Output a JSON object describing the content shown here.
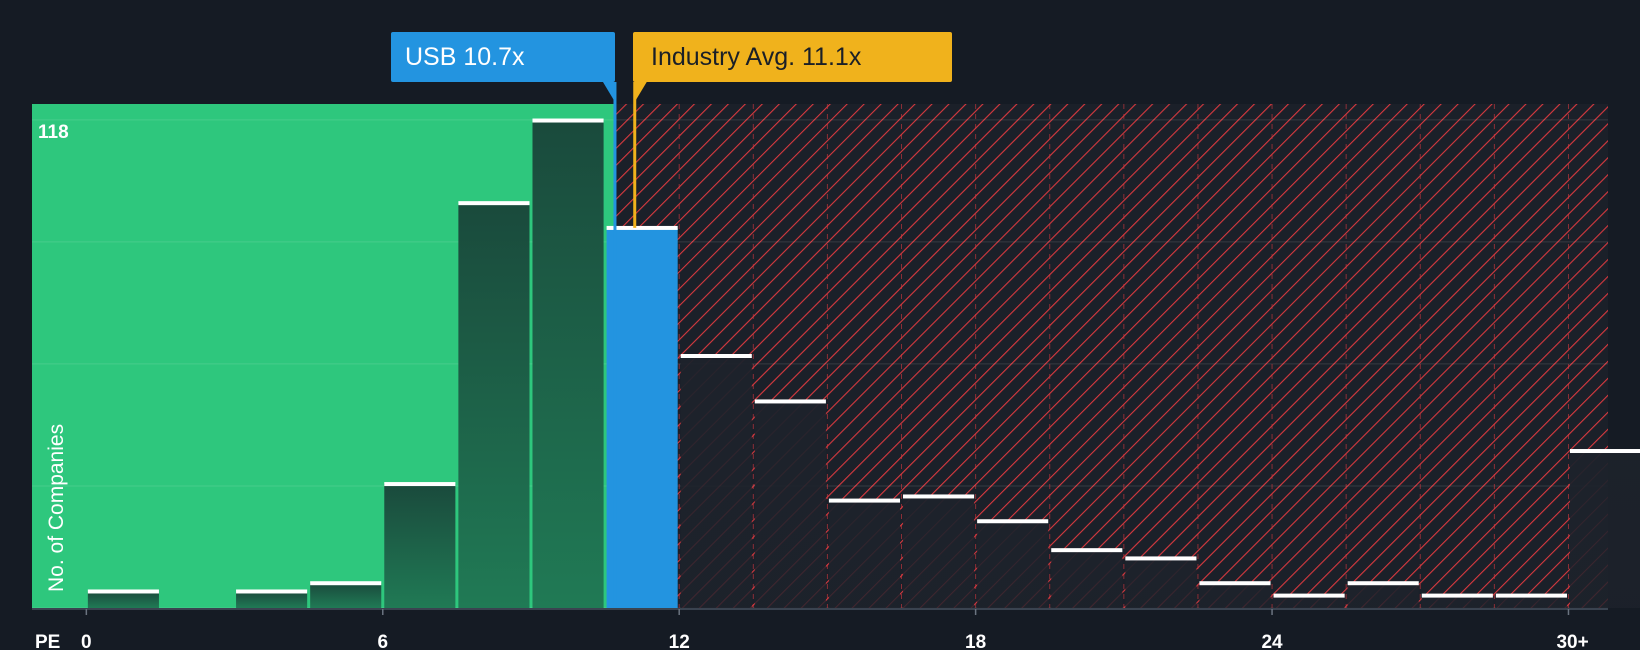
{
  "chart_data": {
    "type": "bar",
    "title": "",
    "xlabel": "PE",
    "ylabel": "No. of Companies",
    "x_ticks": [
      {
        "value": 0,
        "label": "0"
      },
      {
        "value": 6,
        "label": "6"
      },
      {
        "value": 12,
        "label": "12"
      },
      {
        "value": 18,
        "label": "18"
      },
      {
        "value": 24,
        "label": "24"
      },
      {
        "value": 30,
        "label": "30+"
      }
    ],
    "x_range": [
      -1.1,
      30.8
    ],
    "bin_width": 1.5,
    "y_max_label": "118",
    "ylim": [
      0,
      122
    ],
    "grid": true,
    "bins": [
      {
        "start": 0.0,
        "value": 4
      },
      {
        "start": 1.5,
        "value": 0
      },
      {
        "start": 3.0,
        "value": 4
      },
      {
        "start": 4.5,
        "value": 6
      },
      {
        "start": 6.0,
        "value": 30
      },
      {
        "start": 7.5,
        "value": 98
      },
      {
        "start": 9.0,
        "value": 118
      },
      {
        "start": 10.5,
        "value": 92,
        "highlight": true
      },
      {
        "start": 12.0,
        "value": 61
      },
      {
        "start": 13.5,
        "value": 50
      },
      {
        "start": 15.0,
        "value": 26
      },
      {
        "start": 16.5,
        "value": 27
      },
      {
        "start": 18.0,
        "value": 21
      },
      {
        "start": 19.5,
        "value": 14
      },
      {
        "start": 21.0,
        "value": 12
      },
      {
        "start": 22.5,
        "value": 6
      },
      {
        "start": 24.0,
        "value": 3
      },
      {
        "start": 25.5,
        "value": 6
      },
      {
        "start": 27.0,
        "value": 3
      },
      {
        "start": 28.5,
        "value": 3
      },
      {
        "start": 30.0,
        "value": 38
      }
    ],
    "company": {
      "label": "USB 10.7x",
      "value": 10.7
    },
    "industry_avg": {
      "label": "Industry Avg. 11.1x",
      "value": 11.1
    },
    "colors": {
      "undervalued": "#2ec77d",
      "overvalued_hatch": "#d8393f",
      "company": "#2394e0",
      "industry": "#f0b21c",
      "background": "#151b24"
    }
  }
}
